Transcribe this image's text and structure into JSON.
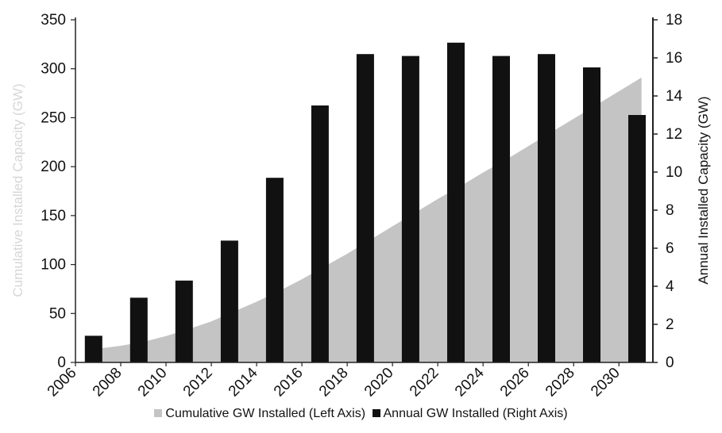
{
  "chart_data": {
    "type": "bar",
    "title": "",
    "x": [
      2006,
      2007,
      2008,
      2009,
      2010,
      2011,
      2012,
      2013,
      2014,
      2015,
      2016,
      2017,
      2018,
      2019,
      2020,
      2021,
      2022,
      2023,
      2024,
      2025,
      2026,
      2027,
      2028,
      2029,
      2030,
      2031
    ],
    "x_tick_labels": [
      "2006",
      "2008",
      "2010",
      "2012",
      "2014",
      "2016",
      "2018",
      "2020",
      "2022",
      "2024",
      "2026",
      "2028",
      "2030"
    ],
    "xlim": [
      2006,
      2031.5
    ],
    "ylabel_left": "Cumulative Installed Capacity (GW)",
    "ylabel_right": "Annual Installed Capacity (GW)",
    "ylim_left": [
      0,
      350
    ],
    "yticks_left": [
      "0",
      "50",
      "100",
      "150",
      "200",
      "250",
      "300",
      "350"
    ],
    "ylim_right": [
      0,
      18
    ],
    "yticks_right": [
      "0",
      "2",
      "4",
      "6",
      "8",
      "10",
      "12",
      "14",
      "16",
      "18"
    ],
    "series": [
      {
        "name": "Cumulative GW Installed (Left Axis)",
        "type": "area",
        "axis": "left",
        "color": "#c4c4c4",
        "x": [
          2007,
          2008,
          2009,
          2010,
          2011,
          2012,
          2013,
          2014,
          2015,
          2016,
          2017,
          2018,
          2019,
          2020,
          2021,
          2022,
          2023,
          2024,
          2025,
          2026,
          2027,
          2028,
          2029,
          2030,
          2031
        ],
        "values": [
          14,
          17,
          21,
          27,
          34,
          42,
          52,
          62,
          73,
          85,
          98,
          111,
          125,
          139,
          153,
          167,
          180,
          194,
          207,
          221,
          235,
          249,
          263,
          277,
          291
        ]
      },
      {
        "name": "Annual GW Installed (Right Axis)",
        "type": "bar",
        "axis": "right",
        "color": "#111111",
        "x": [
          2006.8,
          2008.8,
          2010.8,
          2012.8,
          2014.8,
          2016.8,
          2018.8,
          2020.8,
          2022.8,
          2024.8,
          2026.8,
          2028.8,
          2030.8
        ],
        "values": [
          1.4,
          3.4,
          4.3,
          6.4,
          9.7,
          13.5,
          16.2,
          16.1,
          16.8,
          16.1,
          16.2,
          15.5,
          13.0
        ]
      }
    ],
    "grid": false,
    "legend_position": "bottom"
  }
}
